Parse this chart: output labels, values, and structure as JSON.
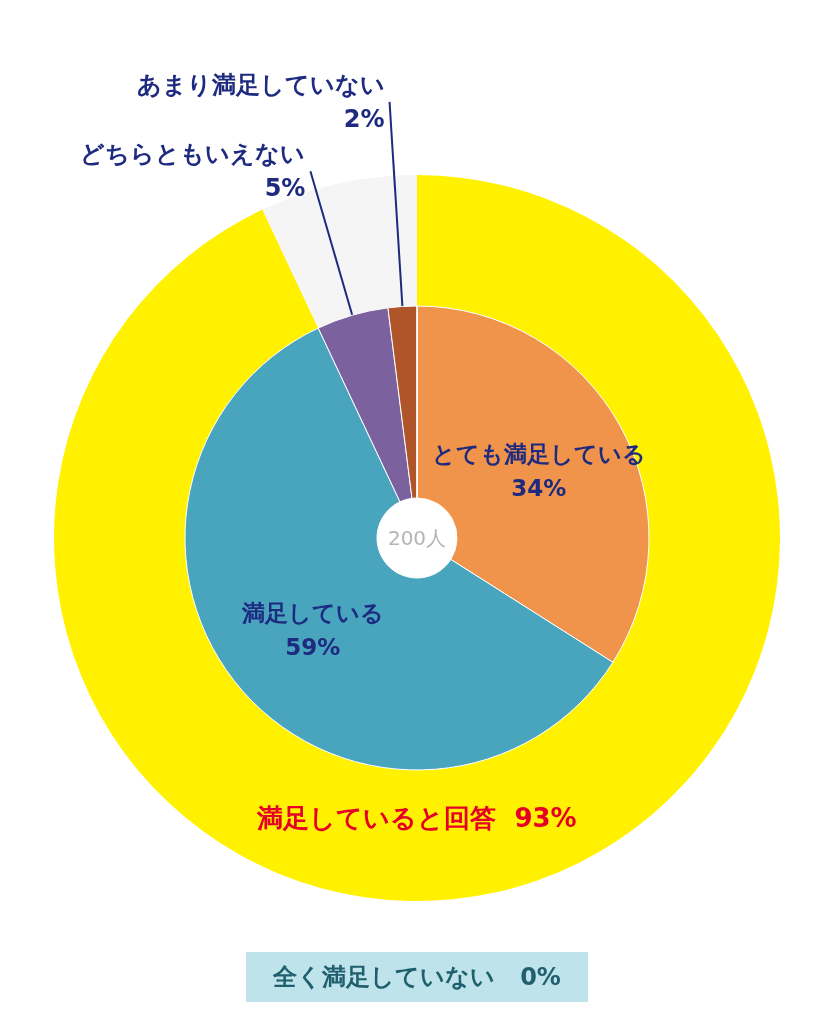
{
  "chart_data": [
    {
      "type": "donut",
      "categories": [
        "とても満足している",
        "満足している",
        "どちらともいえない",
        "あまり満足していない",
        "全く満足していない"
      ],
      "values": [
        34,
        59,
        5,
        2,
        0
      ],
      "colors": [
        "#ef944a",
        "#48a5bd",
        "#7b629e",
        "#b0542a",
        "#bfe3ea"
      ],
      "value_labels": [
        "34%",
        "59%",
        "5%",
        "2%",
        "0%"
      ],
      "annotations": [
        "200人"
      ]
    },
    {
      "type": "donut",
      "categories": [
        "満足していると回答",
        null
      ],
      "values": [
        93,
        7
      ],
      "colors": [
        "#fff100",
        "#f5f5f5"
      ],
      "value_labels": [
        "93%",
        null
      ]
    }
  ]
}
